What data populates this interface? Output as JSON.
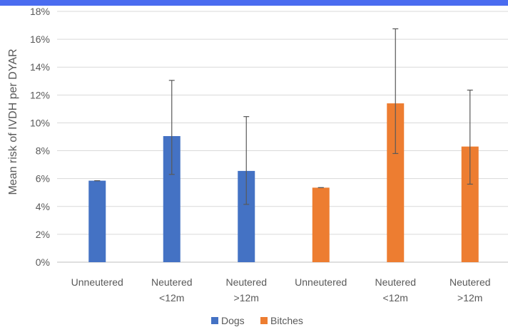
{
  "chart_data": {
    "type": "bar",
    "ylabel": "Mean risk of IVDH per DYAR",
    "ylim": [
      0,
      18
    ],
    "yticks": [
      "0%",
      "2%",
      "4%",
      "6%",
      "8%",
      "10%",
      "12%",
      "14%",
      "16%",
      "18%"
    ],
    "categories": [
      [
        "Unneutered"
      ],
      [
        "Neutered",
        "<12m"
      ],
      [
        "Neutered",
        ">12m"
      ],
      [
        "Unneutered"
      ],
      [
        "Neutered",
        "<12m"
      ],
      [
        "Neutered",
        ">12m"
      ]
    ],
    "series": [
      {
        "name": "Dogs",
        "color": "#4472c4",
        "bars": [
          {
            "category_index": 0,
            "value": 5.85,
            "err_low": 5.85,
            "err_high": 5.85
          },
          {
            "category_index": 1,
            "value": 9.05,
            "err_low": 6.3,
            "err_high": 13.05
          },
          {
            "category_index": 2,
            "value": 6.55,
            "err_low": 4.15,
            "err_high": 10.45
          }
        ]
      },
      {
        "name": "Bitches",
        "color": "#ed7d31",
        "bars": [
          {
            "category_index": 3,
            "value": 5.35,
            "err_low": 5.35,
            "err_high": 5.35
          },
          {
            "category_index": 4,
            "value": 11.4,
            "err_low": 7.8,
            "err_high": 16.75
          },
          {
            "category_index": 5,
            "value": 8.3,
            "err_low": 5.6,
            "err_high": 12.35
          }
        ]
      }
    ],
    "grid": true,
    "legend_position": "bottom"
  }
}
